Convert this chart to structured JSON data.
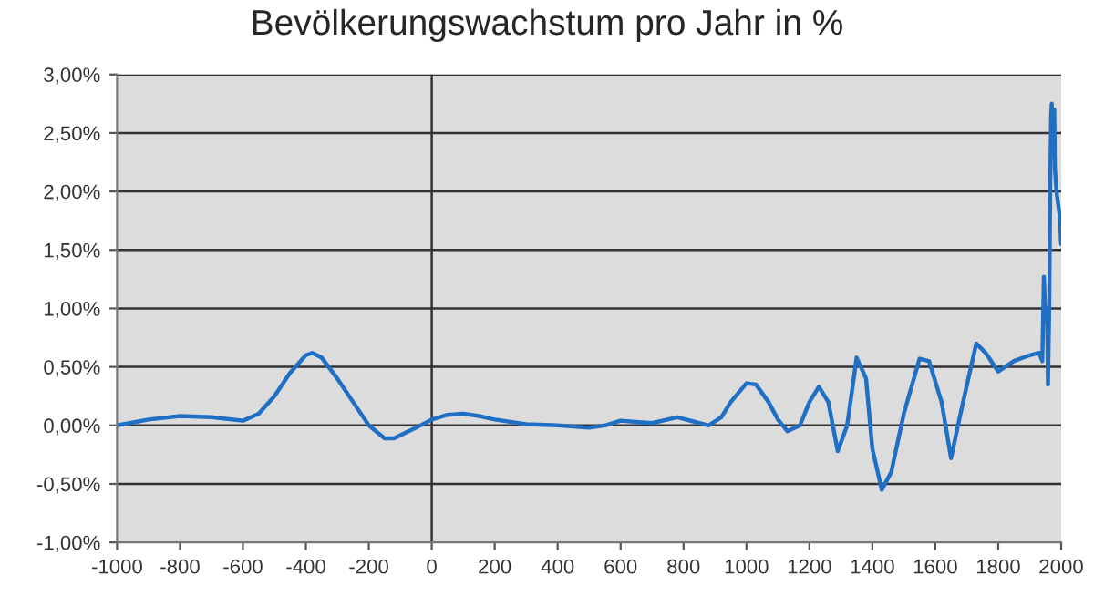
{
  "chart_data": {
    "type": "line",
    "title": "Bevölkerungswachstum pro Jahr in %",
    "x": [
      -1000,
      -900,
      -800,
      -700,
      -600,
      -550,
      -500,
      -450,
      -400,
      -380,
      -350,
      -300,
      -250,
      -200,
      -150,
      -120,
      -50,
      0,
      50,
      100,
      150,
      200,
      300,
      400,
      500,
      550,
      600,
      650,
      700,
      780,
      850,
      880,
      920,
      950,
      1000,
      1030,
      1070,
      1100,
      1130,
      1170,
      1200,
      1230,
      1260,
      1290,
      1320,
      1350,
      1380,
      1400,
      1430,
      1460,
      1500,
      1550,
      1580,
      1620,
      1650,
      1680,
      1730,
      1760,
      1800,
      1850,
      1900,
      1930,
      1940,
      1945,
      1950,
      1955,
      1958,
      1962,
      1965,
      1968,
      1970,
      1973,
      1978,
      1980,
      1985,
      1990,
      1995,
      2000
    ],
    "series": [
      {
        "color": "#1f6fc5",
        "values": [
          0,
          0.05,
          0.08,
          0.07,
          0.04,
          0.1,
          0.25,
          0.45,
          0.6,
          0.62,
          0.58,
          0.4,
          0.2,
          0.0,
          -0.11,
          -0.11,
          -0.02,
          0.05,
          0.09,
          0.1,
          0.08,
          0.05,
          0.01,
          0.0,
          -0.02,
          0.0,
          0.04,
          0.03,
          0.02,
          0.07,
          0.02,
          0.0,
          0.07,
          0.2,
          0.36,
          0.35,
          0.2,
          0.05,
          -0.05,
          0.0,
          0.2,
          0.33,
          0.2,
          -0.22,
          0.0,
          0.58,
          0.4,
          -0.2,
          -0.55,
          -0.4,
          0.1,
          0.57,
          0.55,
          0.2,
          -0.28,
          0.1,
          0.7,
          0.62,
          0.46,
          0.55,
          0.6,
          0.62,
          0.55,
          1.27,
          0.9,
          1.0,
          0.35,
          1.0,
          2.0,
          2.65,
          2.75,
          2.3,
          2.7,
          2.2,
          2.0,
          1.9,
          1.8,
          1.55
        ]
      }
    ],
    "xlim": [
      -1000,
      2000
    ],
    "xticks": [
      -1000,
      -800,
      -600,
      -400,
      -200,
      0,
      200,
      400,
      600,
      800,
      1000,
      1200,
      1400,
      1600,
      1800,
      2000
    ],
    "ylim": [
      -1,
      3
    ],
    "yticks": [
      {
        "value": -1,
        "label": "-1,00%"
      },
      {
        "value": -0.5,
        "label": "-0,50%"
      },
      {
        "value": 0,
        "label": "0,00%"
      },
      {
        "value": 0.5,
        "label": "0,50%"
      },
      {
        "value": 1,
        "label": "1,00%"
      },
      {
        "value": 1.5,
        "label": "1,50%"
      },
      {
        "value": 2,
        "label": "2,00%"
      },
      {
        "value": 2.5,
        "label": "2,50%"
      },
      {
        "value": 3,
        "label": "3,00%"
      }
    ],
    "grid": "y",
    "marker": "none",
    "line_style": "solid",
    "ref_lines": [
      {
        "axis": "x",
        "value": 0,
        "label": null,
        "color": "#333333"
      }
    ]
  }
}
